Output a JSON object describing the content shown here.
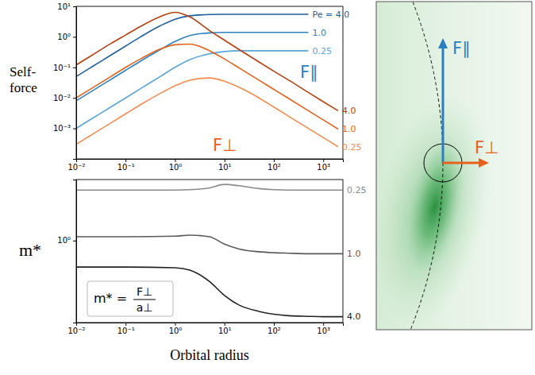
{
  "chart_data": [
    {
      "type": "line",
      "log": true,
      "ylabel": "Self-force",
      "xlim": [
        0.01,
        2500
      ],
      "ylim": [
        0.0001,
        10
      ],
      "xticks": [
        {
          "value": 0.01,
          "label": "10⁻²"
        },
        {
          "value": 0.1,
          "label": "10⁻¹"
        },
        {
          "value": 1,
          "label": "10⁰"
        },
        {
          "value": 10,
          "label": "10¹"
        },
        {
          "value": 100,
          "label": "10²"
        },
        {
          "value": 1000,
          "label": "10³"
        }
      ],
      "yticks": [
        {
          "value": 0.001,
          "label": "10⁻³"
        },
        {
          "value": 0.01,
          "label": "10⁻²"
        },
        {
          "value": 0.1,
          "label": "10⁻¹"
        },
        {
          "value": 1,
          "label": "10⁰"
        },
        {
          "value": 10,
          "label": "10¹"
        }
      ],
      "annotations": [
        {
          "text": "F∥",
          "color": "#2a7fc1"
        },
        {
          "text": "F⊥",
          "color": "#e8601c"
        }
      ],
      "series": [
        {
          "name": "Pe = 4.0",
          "color": "#1f5f9e",
          "x": [
            0.01,
            0.02,
            0.05,
            0.1,
            0.2,
            0.5,
            1,
            2,
            5,
            10,
            20,
            50,
            100,
            200,
            500
          ],
          "values": [
            0.05,
            0.1,
            0.25,
            0.5,
            1.0,
            2.3,
            3.8,
            4.9,
            5.4,
            5.5,
            5.5,
            5.5,
            5.5,
            5.5,
            5.5
          ]
        },
        {
          "name": "1.0",
          "color": "#2f80c2",
          "x": [
            0.01,
            0.02,
            0.05,
            0.1,
            0.2,
            0.5,
            1,
            2,
            5,
            10,
            20,
            50,
            100,
            200,
            500
          ],
          "values": [
            0.008,
            0.016,
            0.04,
            0.08,
            0.16,
            0.38,
            0.7,
            1.1,
            1.35,
            1.4,
            1.4,
            1.4,
            1.4,
            1.4,
            1.4
          ]
        },
        {
          "name": "0.25",
          "color": "#5aa6d8",
          "x": [
            0.01,
            0.02,
            0.05,
            0.1,
            0.2,
            0.5,
            1,
            2,
            5,
            10,
            20,
            50,
            100,
            200,
            500
          ],
          "values": [
            0.001,
            0.002,
            0.005,
            0.01,
            0.02,
            0.05,
            0.1,
            0.18,
            0.28,
            0.33,
            0.35,
            0.35,
            0.35,
            0.35,
            0.35
          ]
        },
        {
          "name": "4.0",
          "color": "#b3400f",
          "x": [
            0.01,
            0.02,
            0.05,
            0.1,
            0.2,
            0.5,
            1,
            2,
            5,
            10,
            20,
            50,
            100,
            200,
            500,
            1000,
            2000
          ],
          "values": [
            0.12,
            0.24,
            0.6,
            1.15,
            2.2,
            4.6,
            6.4,
            4.5,
            1.6,
            0.78,
            0.38,
            0.15,
            0.075,
            0.038,
            0.015,
            0.0075,
            0.0038
          ]
        },
        {
          "name": "1.0",
          "color": "#e0621c",
          "x": [
            0.01,
            0.02,
            0.05,
            0.1,
            0.2,
            0.5,
            1,
            2,
            5,
            10,
            20,
            50,
            100,
            200,
            500,
            1000,
            2000
          ],
          "values": [
            0.01,
            0.02,
            0.05,
            0.1,
            0.19,
            0.4,
            0.55,
            0.58,
            0.35,
            0.19,
            0.095,
            0.038,
            0.019,
            0.0095,
            0.0038,
            0.0019,
            0.00095
          ]
        },
        {
          "name": "0.25",
          "color": "#f28c4e",
          "x": [
            0.01,
            0.02,
            0.05,
            0.1,
            0.2,
            0.5,
            1,
            2,
            5,
            10,
            20,
            50,
            100,
            200,
            500,
            1000,
            2000
          ],
          "values": [
            0.0003,
            0.0006,
            0.0015,
            0.003,
            0.006,
            0.014,
            0.025,
            0.038,
            0.045,
            0.035,
            0.022,
            0.01,
            0.005,
            0.0025,
            0.001,
            0.0005,
            0.00025
          ]
        }
      ]
    },
    {
      "type": "line",
      "log": true,
      "xlabel": "Orbital radius",
      "ylabel": "m*",
      "xlim": [
        0.01,
        2500
      ],
      "ylim": [
        0.09,
        6
      ],
      "xticks": [
        {
          "value": 0.01,
          "label": "10⁻²"
        },
        {
          "value": 0.1,
          "label": "10⁻¹"
        },
        {
          "value": 1,
          "label": "10⁰"
        },
        {
          "value": 10,
          "label": "10¹"
        },
        {
          "value": 100,
          "label": "10²"
        },
        {
          "value": 1000,
          "label": "10³"
        }
      ],
      "yticks": [
        {
          "value": 1,
          "label": "10⁰"
        }
      ],
      "annotations": [
        {
          "text": "m* =",
          "numerator": "F⊥",
          "denominator": "a⊥"
        }
      ],
      "series": [
        {
          "name": "0.25",
          "color": "#8a8a8a",
          "x": [
            0.01,
            0.1,
            1,
            2,
            5,
            10,
            20,
            50,
            100,
            200,
            500,
            1000,
            2500
          ],
          "values": [
            4.4,
            4.4,
            4.4,
            4.45,
            4.7,
            5.2,
            5.0,
            4.6,
            4.45,
            4.4,
            4.4,
            4.4,
            4.4
          ]
        },
        {
          "name": "1.0",
          "color": "#5a5a5a",
          "x": [
            0.01,
            0.1,
            1,
            2,
            5,
            10,
            20,
            50,
            100,
            200,
            500,
            1000,
            2500
          ],
          "values": [
            1.12,
            1.12,
            1.14,
            1.17,
            1.12,
            0.9,
            0.78,
            0.72,
            0.7,
            0.69,
            0.68,
            0.68,
            0.68
          ]
        },
        {
          "name": "4.0",
          "color": "#222222",
          "x": [
            0.01,
            0.1,
            1,
            2,
            5,
            10,
            20,
            50,
            100,
            200,
            500,
            1000,
            2500
          ],
          "values": [
            0.46,
            0.46,
            0.45,
            0.42,
            0.3,
            0.2,
            0.15,
            0.125,
            0.115,
            0.11,
            0.108,
            0.107,
            0.107
          ]
        }
      ]
    }
  ],
  "diagram": {
    "arrows": [
      {
        "label": "F∥",
        "color": "#2a7fc1"
      },
      {
        "label": "F⊥",
        "color": "#e8601c"
      }
    ]
  }
}
